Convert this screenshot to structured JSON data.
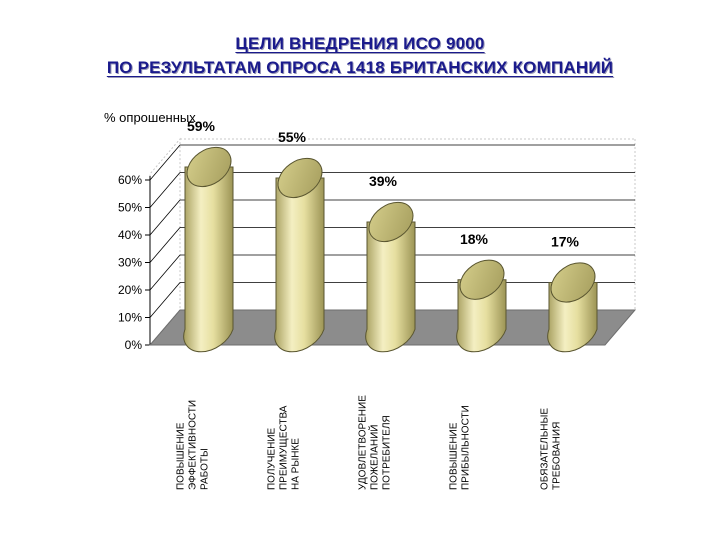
{
  "title_line1": "ЦЕЛИ ВНЕДРЕНИЯ ИСО 9000",
  "title_line2": "ПО РЕЗУЛЬТАТАМ ОПРОСА 1418 БРИТАНСКИХ КОМПАНИЙ",
  "chart_data": {
    "type": "bar",
    "ylabel": "%  опрошенных",
    "ylim": [
      0,
      60
    ],
    "yticks": [
      "0%",
      "10%",
      "20%",
      "30%",
      "40%",
      "50%",
      "60%"
    ],
    "ytick_values": [
      0,
      10,
      20,
      30,
      40,
      50,
      60
    ],
    "categories": [
      [
        "ПОВЫШЕНИЕ",
        "ЭФФЕКТИВНОСТИ",
        "РАБОТЫ"
      ],
      [
        "ПОЛУЧЕНИЕ",
        "ПРЕИМУЩЕСТВА",
        "НА РЫНКЕ"
      ],
      [
        "УДОВЛЕТВОРЕНИЕ",
        "ПОЖЕЛАНИЙ",
        "ПОТРЕБИТЕЛЯ"
      ],
      [
        "ПОВЫШЕНИЕ",
        "ПРИБЫЛЬНОСТИ"
      ],
      [
        "ОБЯЗАТЕЛЬНЫЕ",
        "ТРЕБОВАНИЯ"
      ]
    ],
    "values": [
      59,
      55,
      39,
      18,
      17
    ],
    "data_labels": [
      "59%",
      "55%",
      "39%",
      "18%",
      "17%"
    ],
    "grid": true,
    "colors": {
      "bar": "#e9e3a6",
      "bar_dark": "#b9b26a",
      "floor": "#8c8c8c",
      "grid": "#000000"
    }
  }
}
